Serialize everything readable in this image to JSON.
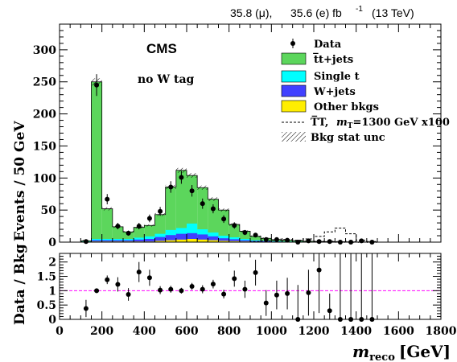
{
  "chart_data": [
    {
      "type": "bar",
      "title": "",
      "header": {
        "lumi_mu": "35.8 (μ),",
        "lumi_e": "35.6 (e) fb",
        "lumi_exp": "-1",
        "energy": "(13 TeV)"
      },
      "experiment": "CMS",
      "category": "no W tag",
      "ylabel": "Events / 50 GeV",
      "xlabel_main": "m",
      "xlabel_sub": "reco",
      "xlabel_unit": "[GeV]",
      "xlim": [
        0,
        1800
      ],
      "ylim": [
        0,
        340
      ],
      "yticks": [
        "0",
        "50",
        "100",
        "150",
        "200",
        "250",
        "300"
      ],
      "xticks": [
        "0",
        "200",
        "400",
        "600",
        "800",
        "1000",
        "1200",
        "1400",
        "1600",
        "1800"
      ],
      "bin_edges": [
        100,
        150,
        200,
        250,
        300,
        350,
        400,
        450,
        500,
        550,
        600,
        650,
        700,
        750,
        800,
        850,
        900,
        950,
        1000,
        1050,
        1100,
        1150,
        1200,
        1250,
        1300,
        1350,
        1400,
        1450,
        1500
      ],
      "stack": [
        {
          "name": "Other bkgs",
          "color": "#ffee00",
          "values": [
            0,
            1,
            1,
            1,
            1,
            1,
            1,
            2,
            3,
            4,
            5,
            4,
            3,
            2,
            1.5,
            1,
            0.5,
            0.5,
            0.3,
            0.2,
            0.2,
            0.1,
            0.1,
            0.1,
            0.05,
            0.05,
            0.05,
            0.05
          ]
        },
        {
          "name": "W+jets",
          "color": "#4040ff",
          "values": [
            0.5,
            2,
            2,
            2,
            2,
            3,
            4,
            6,
            8,
            9,
            9,
            8,
            6,
            4,
            3,
            2,
            1.5,
            1,
            0.6,
            0.5,
            0.4,
            0.3,
            0.2,
            0.2,
            0.1,
            0.1,
            0.1,
            0.1
          ]
        },
        {
          "name": "Single t",
          "color": "#00ffff",
          "values": [
            0.5,
            2,
            2,
            2,
            2,
            3,
            4,
            5,
            8,
            9,
            15,
            8,
            6,
            4,
            3,
            2,
            1,
            0.5,
            0.5,
            0.3,
            0.2,
            0.2,
            0.1,
            0.1,
            0.1,
            0.1,
            0.05,
            0.05
          ]
        },
        {
          "name": "t̅t+jets",
          "color": "#5cd65c",
          "values": [
            1,
            245,
            47,
            19,
            11,
            16,
            17,
            30,
            67,
            90,
            75,
            65,
            52,
            40,
            20,
            12,
            6,
            4,
            2.5,
            2,
            1.2,
            0.8,
            0.6,
            0.5,
            0.3,
            0.2,
            0.15,
            0.1
          ]
        }
      ],
      "signal": {
        "name": "T̅T,",
        "mass_label": "m",
        "mass_sub": "T",
        "mass_value": "=1300 GeV x100",
        "values": [
          0,
          0,
          0,
          0,
          0,
          0,
          0,
          0,
          0,
          0,
          0,
          0,
          0,
          0,
          0,
          0,
          1,
          2,
          3,
          4,
          3,
          5,
          9,
          16,
          22,
          13,
          3,
          1
        ]
      },
      "data": {
        "name": "Data",
        "x": [
          125,
          175,
          225,
          275,
          325,
          375,
          425,
          475,
          525,
          575,
          625,
          675,
          725,
          775,
          825,
          875,
          925,
          975,
          1025,
          1075,
          1125,
          1175,
          1225,
          1275,
          1325,
          1375,
          1425,
          1475
        ],
        "y": [
          1,
          245,
          67,
          25,
          14,
          25,
          37,
          48,
          86,
          101,
          80,
          60,
          52,
          36,
          26,
          15,
          11,
          4,
          4,
          3,
          0,
          2,
          1,
          1,
          0,
          0,
          2,
          0
        ],
        "yerr": [
          2,
          17,
          8,
          5,
          4,
          5,
          6,
          7,
          9,
          10,
          9,
          8,
          7,
          6,
          5,
          4,
          3,
          2,
          2,
          2,
          1.5,
          1.5,
          1.5,
          1.5,
          1.5,
          1.5,
          1.5,
          1.5
        ]
      },
      "legend": {
        "position": "top-right",
        "unc_label": "Bkg stat unc"
      }
    },
    {
      "type": "scatter",
      "title": "",
      "ylabel": "Data / Bkg",
      "ylim": [
        0,
        2.3
      ],
      "yticks": [
        "0",
        "0.5",
        "1",
        "1.5",
        "2"
      ],
      "reference_line": 1,
      "x": [
        125,
        175,
        225,
        275,
        325,
        375,
        425,
        475,
        525,
        575,
        625,
        675,
        725,
        775,
        825,
        875,
        925,
        975,
        1025,
        1075,
        1125,
        1175,
        1225,
        1275,
        1325,
        1375,
        1425,
        1475
      ],
      "y": [
        0.38,
        1.0,
        1.38,
        1.22,
        0.87,
        1.65,
        1.45,
        1.02,
        1.05,
        1.0,
        1.15,
        1.05,
        1.23,
        0.88,
        1.42,
        1.05,
        1.63,
        0.57,
        0.85,
        0.9,
        0,
        0.93,
        1.72,
        0.3,
        0,
        0,
        0,
        0
      ],
      "yerr": [
        0.3,
        0.08,
        0.15,
        0.25,
        0.22,
        0.35,
        0.28,
        0.14,
        0.12,
        0.1,
        0.12,
        0.14,
        0.15,
        0.15,
        0.28,
        0.3,
        0.45,
        0.45,
        0.5,
        0.55,
        1.2,
        0.8,
        1.5,
        0.6,
        2.3,
        2.3,
        2.3,
        2.3
      ]
    }
  ]
}
